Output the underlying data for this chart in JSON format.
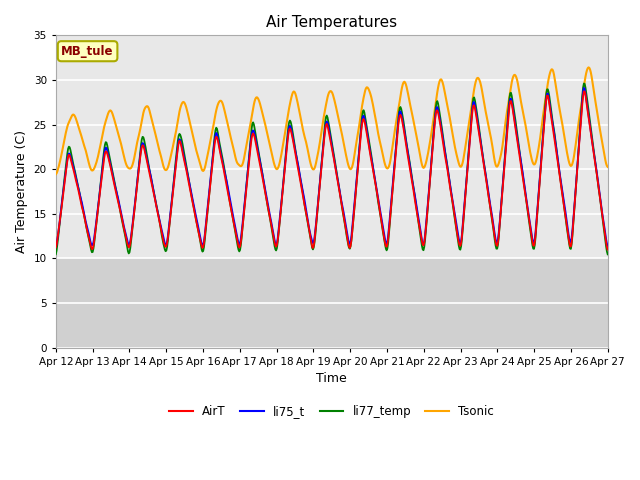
{
  "title": "Air Temperatures",
  "xlabel": "Time",
  "ylabel": "Air Temperature (C)",
  "ylim": [
    0,
    35
  ],
  "yticks": [
    0,
    5,
    10,
    15,
    20,
    25,
    30,
    35
  ],
  "x_tick_labels": [
    "Apr 12",
    "Apr 13",
    "Apr 14",
    "Apr 15",
    "Apr 16",
    "Apr 17",
    "Apr 18",
    "Apr 19",
    "Apr 20",
    "Apr 21",
    "Apr 22",
    "Apr 23",
    "Apr 24",
    "Apr 25",
    "Apr 26",
    "Apr 27"
  ],
  "annotation_text": "MB_tule",
  "annotation_color": "#8B0000",
  "annotation_bg": "#FFFFC0",
  "annotation_edge": "#AAAA00",
  "fig_bg": "#FFFFFF",
  "plot_bg_upper": "#E8E8E8",
  "plot_bg_lower": "#D0D0D0",
  "grid_color": "#FFFFFF",
  "colors": {
    "AirT": "red",
    "li75_t": "blue",
    "li77_temp": "green",
    "Tsonic": "orange"
  },
  "legend_labels": [
    "AirT",
    "li75_t",
    "li77_temp",
    "Tsonic"
  ]
}
